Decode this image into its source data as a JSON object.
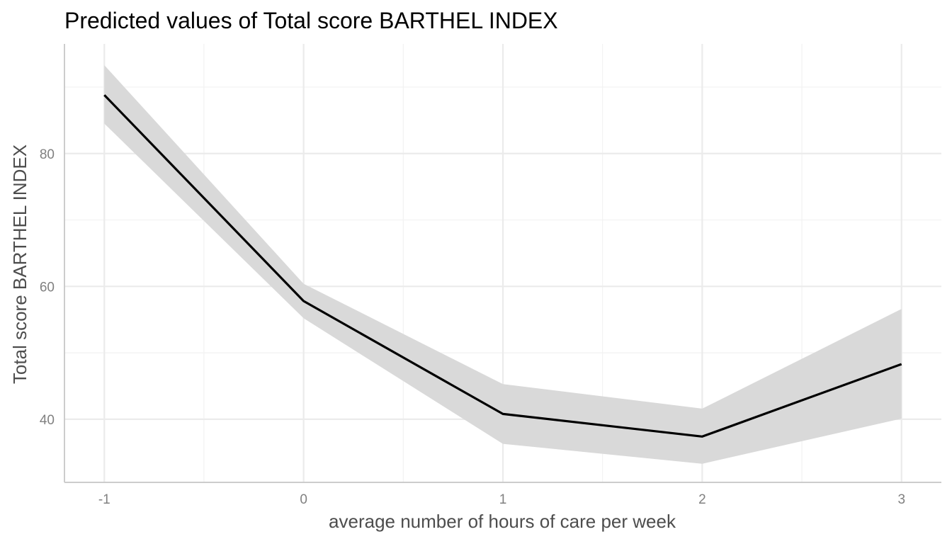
{
  "chart_data": {
    "type": "line",
    "title": "Predicted values of Total score BARTHEL INDEX",
    "xlabel": "average number of hours of care per week",
    "ylabel": "Total score BARTHEL INDEX",
    "xlim": [
      -1.2,
      3.2
    ],
    "ylim": [
      30.5,
      96.5
    ],
    "x_ticks": [
      -1,
      0,
      1,
      2,
      3
    ],
    "x_tick_labels": [
      "-1",
      "0",
      "1",
      "2",
      "3"
    ],
    "y_ticks": [
      40,
      60,
      80
    ],
    "y_tick_labels": [
      "40",
      "60",
      "80"
    ],
    "grid": true,
    "legend": "none",
    "series": [
      {
        "x": [
          -1,
          0,
          1,
          2,
          3
        ],
        "y": [
          88.8,
          57.8,
          40.8,
          37.4,
          48.3
        ],
        "ci_low": [
          84.5,
          55.2,
          36.3,
          33.3,
          40.1
        ],
        "ci_high": [
          93.3,
          60.4,
          45.3,
          41.6,
          56.6
        ],
        "color": "#000000",
        "ribbon_color": "#d9d9d9"
      }
    ]
  }
}
